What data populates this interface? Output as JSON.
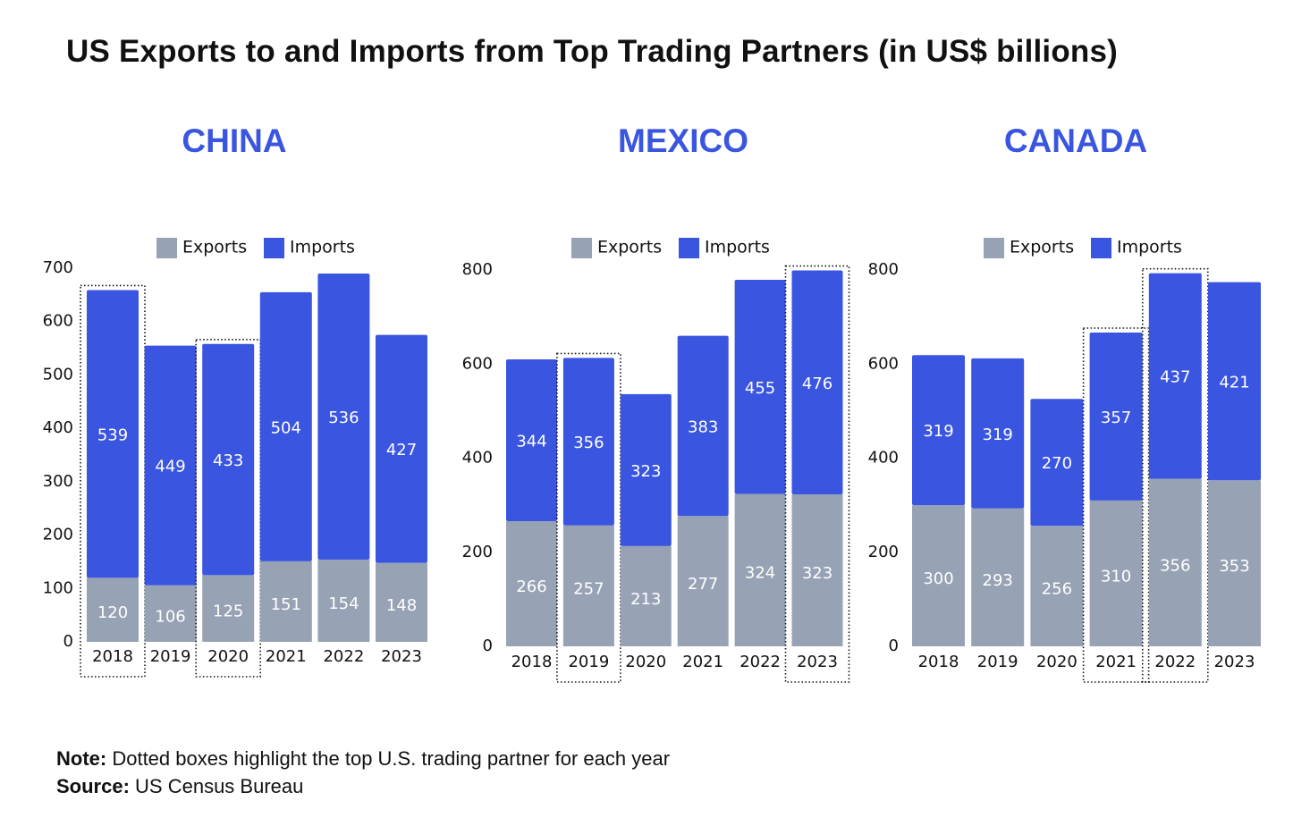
{
  "title": "US Exports to and Imports from Top Trading Partners (in US$ billions)",
  "colors": {
    "exports": "#97a3b5",
    "imports": "#3a55df",
    "panel_title": "#3a55df",
    "text": "#111111"
  },
  "legend": {
    "exports_label": "Exports",
    "imports_label": "Imports"
  },
  "chart_data": [
    {
      "type": "bar",
      "stacked": true,
      "title": "CHINA",
      "categories": [
        "2018",
        "2019",
        "2020",
        "2021",
        "2022",
        "2023"
      ],
      "series": [
        {
          "name": "Exports",
          "values": [
            120,
            106,
            125,
            151,
            154,
            148
          ]
        },
        {
          "name": "Imports",
          "values": [
            539,
            449,
            433,
            504,
            536,
            427
          ]
        }
      ],
      "ylim": [
        0,
        700
      ],
      "yticks": [
        0,
        100,
        200,
        300,
        400,
        500,
        600,
        700
      ],
      "highlighted": [
        "2018",
        "2020"
      ]
    },
    {
      "type": "bar",
      "stacked": true,
      "title": "MEXICO",
      "categories": [
        "2018",
        "2019",
        "2020",
        "2021",
        "2022",
        "2023"
      ],
      "series": [
        {
          "name": "Exports",
          "values": [
            266,
            257,
            213,
            277,
            324,
            323
          ]
        },
        {
          "name": "Imports",
          "values": [
            344,
            356,
            323,
            383,
            455,
            476
          ]
        }
      ],
      "ylim": [
        0,
        800
      ],
      "yticks": [
        0,
        200,
        400,
        600,
        800
      ],
      "highlighted": [
        "2019",
        "2023"
      ]
    },
    {
      "type": "bar",
      "stacked": true,
      "title": "CANADA",
      "categories": [
        "2018",
        "2019",
        "2020",
        "2021",
        "2022",
        "2023"
      ],
      "series": [
        {
          "name": "Exports",
          "values": [
            300,
            293,
            256,
            310,
            356,
            353
          ]
        },
        {
          "name": "Imports",
          "values": [
            319,
            319,
            270,
            357,
            437,
            421
          ]
        }
      ],
      "ylim": [
        0,
        800
      ],
      "yticks": [
        0,
        200,
        400,
        600,
        800
      ],
      "highlighted": [
        "2021",
        "2022"
      ]
    }
  ],
  "footer": {
    "note_label": "Note:",
    "note_text": " Dotted boxes highlight the top U.S. trading partner for each year",
    "source_label": "Source:",
    "source_text": " US Census Bureau"
  }
}
